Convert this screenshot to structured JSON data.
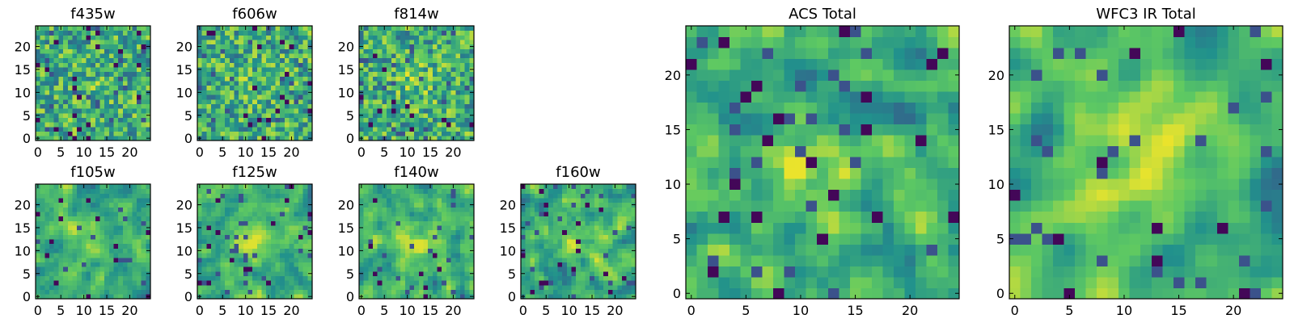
{
  "figure": {
    "title": "",
    "colormap": {
      "name": "viridis",
      "stops": [
        "#440154",
        "#3b528b",
        "#21918c",
        "#5ec962",
        "#fde725"
      ]
    }
  },
  "chart_data": [
    {
      "type": "heatmap",
      "title": "f435w",
      "rows": 25,
      "cols": 25,
      "xticks": [
        0,
        5,
        10,
        15,
        20
      ],
      "yticks": [
        0,
        5,
        10,
        15,
        20
      ],
      "xlim": [
        -0.5,
        24.5
      ],
      "ylim": [
        -0.5,
        24.5
      ],
      "seed": 11,
      "smooth": 0,
      "peak": 0.05,
      "cap": 0.98
    },
    {
      "type": "heatmap",
      "title": "f606w",
      "rows": 25,
      "cols": 25,
      "xticks": [
        0,
        5,
        10,
        15,
        20
      ],
      "yticks": [
        0,
        5,
        10,
        15,
        20
      ],
      "xlim": [
        -0.5,
        24.5
      ],
      "ylim": [
        -0.5,
        24.5
      ],
      "seed": 23,
      "smooth": 0,
      "peak": 0.08,
      "cap": 0.98
    },
    {
      "type": "heatmap",
      "title": "f814w",
      "rows": 25,
      "cols": 25,
      "xticks": [
        0,
        5,
        10,
        15,
        20
      ],
      "yticks": [
        0,
        5,
        10,
        15,
        20
      ],
      "xlim": [
        -0.5,
        24.5
      ],
      "ylim": [
        -0.5,
        24.5
      ],
      "seed": 37,
      "smooth": 0,
      "peak": 0.12,
      "cap": 0.98
    },
    {
      "type": "heatmap",
      "title": "f105w",
      "rows": 25,
      "cols": 25,
      "xticks": [
        0,
        5,
        10,
        15,
        20
      ],
      "yticks": [
        0,
        5,
        10,
        15,
        20
      ],
      "xlim": [
        -0.5,
        24.5
      ],
      "ylim": [
        -0.5,
        24.5
      ],
      "seed": 41,
      "smooth": 1,
      "peak": 0.2,
      "cap": 0.95
    },
    {
      "type": "heatmap",
      "title": "f125w",
      "rows": 25,
      "cols": 25,
      "xticks": [
        0,
        5,
        10,
        15,
        20
      ],
      "yticks": [
        0,
        5,
        10,
        15,
        20
      ],
      "xlim": [
        -0.5,
        24.5
      ],
      "ylim": [
        -0.5,
        24.5
      ],
      "seed": 53,
      "smooth": 1,
      "peak": 0.25,
      "cap": 0.95
    },
    {
      "type": "heatmap",
      "title": "f140w",
      "rows": 25,
      "cols": 25,
      "xticks": [
        0,
        5,
        10,
        15,
        20
      ],
      "yticks": [
        0,
        5,
        10,
        15,
        20
      ],
      "xlim": [
        -0.5,
        24.5
      ],
      "ylim": [
        -0.5,
        24.5
      ],
      "seed": 67,
      "smooth": 1,
      "peak": 0.18,
      "cap": 0.95
    },
    {
      "type": "heatmap",
      "title": "f160w",
      "rows": 25,
      "cols": 25,
      "xticks": [
        0,
        5,
        10,
        15,
        20
      ],
      "yticks": [
        0,
        5,
        10,
        15,
        20
      ],
      "xlim": [
        -0.5,
        24.5
      ],
      "ylim": [
        -0.5,
        24.5
      ],
      "seed": 79,
      "smooth": 1,
      "peak": 0.22,
      "cap": 0.95
    },
    {
      "type": "heatmap",
      "title": "ACS Total",
      "rows": 25,
      "cols": 25,
      "xticks": [
        0,
        5,
        10,
        15,
        20
      ],
      "yticks": [
        0,
        5,
        10,
        15,
        20
      ],
      "xlim": [
        -0.5,
        24.5
      ],
      "ylim": [
        -0.5,
        24.5
      ],
      "seed": 97,
      "smooth": 1,
      "peak": 0.2,
      "cap": 0.97
    },
    {
      "type": "heatmap",
      "title": "WFC3 IR Total",
      "rows": 25,
      "cols": 25,
      "xticks": [
        0,
        5,
        10,
        15,
        20
      ],
      "yticks": [
        0,
        5,
        10,
        15,
        20
      ],
      "xlim": [
        -0.5,
        24.5
      ],
      "ylim": [
        -0.5,
        24.5
      ],
      "seed": 113,
      "smooth": 2,
      "peak": 0.32,
      "cap": 0.97
    }
  ]
}
